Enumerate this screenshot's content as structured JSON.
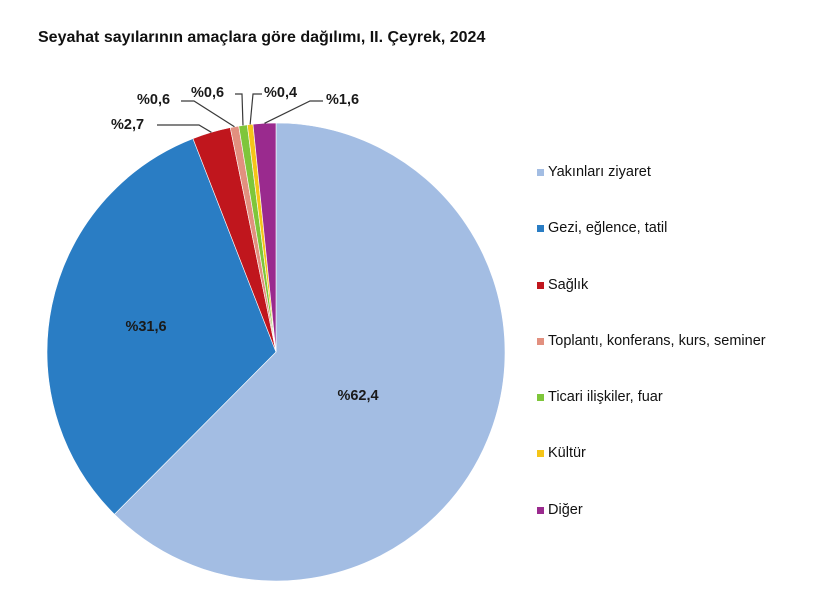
{
  "chart_data": {
    "type": "pie",
    "title": "Seyahat sayılarının amaçlara göre dağılımı, II. Çeyrek, 2024",
    "start_angle": "12 o'clock, clockwise",
    "unit": "%",
    "legend_position": "right",
    "categories": [
      "Yakınları ziyaret",
      "Gezi, eğlence, tatil",
      "Sağlık",
      "Toplantı, konferans, kurs, seminer",
      "Ticari ilişkiler, fuar",
      "Kültür",
      "Diğer"
    ],
    "values": [
      62.4,
      31.6,
      2.7,
      0.6,
      0.6,
      0.4,
      1.6
    ],
    "data_labels": [
      "%62,4",
      "%31,6",
      "%2,7",
      "%0,6",
      "%0,6",
      "%0,4",
      "%1,6"
    ],
    "colors": [
      "#a3bde3",
      "#2a7dc4",
      "#c0161d",
      "#e2907f",
      "#7ec63a",
      "#f5c518",
      "#9a2a8e"
    ]
  },
  "title": "Seyahat sayılarının amaçlara göre dağılımı, II. Çeyrek, 2024",
  "legend": {
    "items": [
      {
        "label": "Yakınları ziyaret",
        "color": "#a3bde3"
      },
      {
        "label": "Gezi, eğlence, tatil",
        "color": "#2a7dc4"
      },
      {
        "label": "Sağlık",
        "color": "#c0161d"
      },
      {
        "label": "Toplantı, konferans, kurs, seminer",
        "color": "#e2907f"
      },
      {
        "label": "Ticari ilişkiler, fuar",
        "color": "#7ec63a"
      },
      {
        "label": "Kültür",
        "color": "#f5c518"
      },
      {
        "label": "Diğer",
        "color": "#9a2a8e"
      }
    ]
  }
}
